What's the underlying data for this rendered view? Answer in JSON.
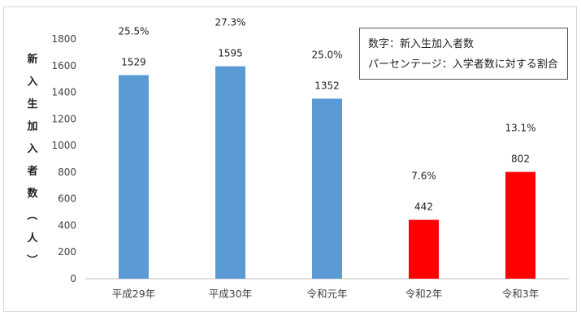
{
  "chart_data": {
    "type": "bar",
    "ylabel": "新入生加入者数（人）",
    "ylim": [
      0,
      1800
    ],
    "yticks": [
      0,
      200,
      400,
      600,
      800,
      1000,
      1200,
      1400,
      1600,
      1800
    ],
    "categories": [
      "平成29年",
      "平成30年",
      "令和元年",
      "令和2年",
      "令和3年"
    ],
    "values": [
      1529,
      1595,
      1352,
      442,
      802
    ],
    "percentages": [
      "25.5%",
      "27.3%",
      "25.0%",
      "7.6%",
      "13.1%"
    ],
    "bar_colors": [
      "#5b9bd5",
      "#5b9bd5",
      "#5b9bd5",
      "#ff0000",
      "#ff0000"
    ],
    "grid": false,
    "legend_notes": [
      "数字：新入生加入者数",
      "パーセンテージ：入学者数に対する割合"
    ]
  }
}
